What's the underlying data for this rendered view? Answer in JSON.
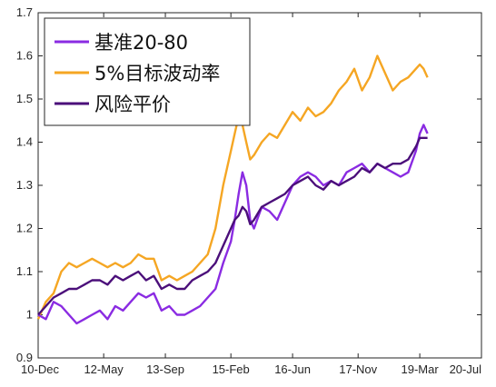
{
  "chart_data": {
    "type": "line",
    "title": "",
    "xlabel": "",
    "ylabel": "",
    "ylim": [
      0.9,
      1.7
    ],
    "yticks": [
      "0.9",
      "1",
      "1.1",
      "1.2",
      "1.3",
      "1.4",
      "1.5",
      "1.6",
      "1.7"
    ],
    "ytick_values": [
      0.9,
      1.0,
      1.1,
      1.2,
      1.3,
      1.4,
      1.5,
      1.6,
      1.7
    ],
    "xticks": [
      "10-Dec",
      "12-May",
      "13-Sep",
      "15-Feb",
      "16-Jun",
      "17-Nov",
      "19-Mar",
      "20-Jul"
    ],
    "xtick_values": [
      "2010-12",
      "2012-05",
      "2013-09",
      "2015-02",
      "2016-06",
      "2017-11",
      "2019-03",
      "2020-07"
    ],
    "xlim": [
      "2010-12",
      "2020-07"
    ],
    "grid": false,
    "legend_position": "top-left",
    "series": [
      {
        "name": "基准20-80",
        "color": "#8a2be2",
        "x": [
          "2010-12",
          "2011-02",
          "2011-04",
          "2011-06",
          "2011-08",
          "2011-10",
          "2011-12",
          "2012-02",
          "2012-04",
          "2012-06",
          "2012-08",
          "2012-10",
          "2012-12",
          "2013-02",
          "2013-04",
          "2013-06",
          "2013-08",
          "2013-10",
          "2013-12",
          "2014-02",
          "2014-04",
          "2014-06",
          "2014-08",
          "2014-10",
          "2014-12",
          "2015-02",
          "2015-03",
          "2015-04",
          "2015-05",
          "2015-06",
          "2015-07",
          "2015-08",
          "2015-10",
          "2015-12",
          "2016-02",
          "2016-04",
          "2016-06",
          "2016-08",
          "2016-10",
          "2016-12",
          "2017-02",
          "2017-04",
          "2017-06",
          "2017-08",
          "2017-10",
          "2017-12",
          "2018-02",
          "2018-04",
          "2018-06",
          "2018-08",
          "2018-10",
          "2018-12",
          "2019-02",
          "2019-03",
          "2019-04",
          "2019-05"
        ],
        "values": [
          1.0,
          0.99,
          1.03,
          1.02,
          1.0,
          0.98,
          0.99,
          1.0,
          1.01,
          0.99,
          1.02,
          1.01,
          1.03,
          1.05,
          1.04,
          1.05,
          1.01,
          1.02,
          1.0,
          1.0,
          1.01,
          1.02,
          1.04,
          1.06,
          1.12,
          1.17,
          1.22,
          1.28,
          1.33,
          1.3,
          1.22,
          1.2,
          1.25,
          1.24,
          1.22,
          1.26,
          1.3,
          1.32,
          1.33,
          1.32,
          1.3,
          1.31,
          1.3,
          1.33,
          1.34,
          1.35,
          1.33,
          1.35,
          1.34,
          1.33,
          1.32,
          1.33,
          1.38,
          1.42,
          1.44,
          1.42
        ]
      },
      {
        "name": "5%目标波动率",
        "color": "#f5a623",
        "x": [
          "2010-12",
          "2011-02",
          "2011-04",
          "2011-06",
          "2011-08",
          "2011-10",
          "2011-12",
          "2012-02",
          "2012-04",
          "2012-06",
          "2012-08",
          "2012-10",
          "2012-12",
          "2013-02",
          "2013-04",
          "2013-06",
          "2013-08",
          "2013-10",
          "2013-12",
          "2014-02",
          "2014-04",
          "2014-06",
          "2014-08",
          "2014-10",
          "2014-12",
          "2015-02",
          "2015-03",
          "2015-04",
          "2015-05",
          "2015-06",
          "2015-07",
          "2015-08",
          "2015-10",
          "2015-12",
          "2016-02",
          "2016-04",
          "2016-06",
          "2016-08",
          "2016-10",
          "2016-12",
          "2017-02",
          "2017-04",
          "2017-06",
          "2017-08",
          "2017-10",
          "2017-12",
          "2018-02",
          "2018-04",
          "2018-06",
          "2018-08",
          "2018-10",
          "2018-12",
          "2019-02",
          "2019-03",
          "2019-04",
          "2019-05"
        ],
        "values": [
          0.99,
          1.03,
          1.05,
          1.1,
          1.12,
          1.11,
          1.12,
          1.13,
          1.12,
          1.11,
          1.12,
          1.11,
          1.12,
          1.14,
          1.13,
          1.13,
          1.08,
          1.09,
          1.08,
          1.09,
          1.1,
          1.12,
          1.14,
          1.2,
          1.3,
          1.38,
          1.42,
          1.46,
          1.44,
          1.4,
          1.36,
          1.37,
          1.4,
          1.42,
          1.41,
          1.44,
          1.47,
          1.45,
          1.48,
          1.46,
          1.47,
          1.49,
          1.52,
          1.54,
          1.57,
          1.52,
          1.55,
          1.6,
          1.56,
          1.52,
          1.54,
          1.55,
          1.57,
          1.58,
          1.57,
          1.55
        ]
      },
      {
        "name": "风险平价",
        "color": "#4b0f7a",
        "x": [
          "2010-12",
          "2011-02",
          "2011-04",
          "2011-06",
          "2011-08",
          "2011-10",
          "2011-12",
          "2012-02",
          "2012-04",
          "2012-06",
          "2012-08",
          "2012-10",
          "2012-12",
          "2013-02",
          "2013-04",
          "2013-06",
          "2013-08",
          "2013-10",
          "2013-12",
          "2014-02",
          "2014-04",
          "2014-06",
          "2014-08",
          "2014-10",
          "2014-12",
          "2015-02",
          "2015-03",
          "2015-04",
          "2015-05",
          "2015-06",
          "2015-07",
          "2015-08",
          "2015-10",
          "2015-12",
          "2016-02",
          "2016-04",
          "2016-06",
          "2016-08",
          "2016-10",
          "2016-12",
          "2017-02",
          "2017-04",
          "2017-06",
          "2017-08",
          "2017-10",
          "2017-12",
          "2018-02",
          "2018-04",
          "2018-06",
          "2018-08",
          "2018-10",
          "2018-12",
          "2019-02",
          "2019-03",
          "2019-04",
          "2019-05"
        ],
        "values": [
          1.0,
          1.02,
          1.04,
          1.05,
          1.06,
          1.06,
          1.07,
          1.08,
          1.08,
          1.07,
          1.09,
          1.08,
          1.09,
          1.1,
          1.08,
          1.09,
          1.06,
          1.07,
          1.06,
          1.06,
          1.08,
          1.09,
          1.1,
          1.12,
          1.16,
          1.2,
          1.22,
          1.23,
          1.25,
          1.24,
          1.21,
          1.22,
          1.25,
          1.26,
          1.27,
          1.28,
          1.3,
          1.31,
          1.32,
          1.3,
          1.29,
          1.31,
          1.3,
          1.31,
          1.32,
          1.34,
          1.33,
          1.35,
          1.34,
          1.35,
          1.35,
          1.36,
          1.39,
          1.41,
          1.41,
          1.41
        ]
      }
    ]
  }
}
